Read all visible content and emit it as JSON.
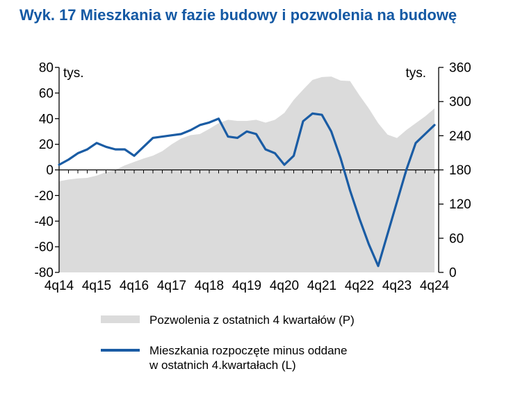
{
  "title": "Wyk. 17 Mieszkania w fazie budowy i pozwolenia na budowę",
  "colors": {
    "title_blue": "#1459A4",
    "line_blue": "#1A5CA4",
    "area_gray": "#DBDBDB",
    "axis_black": "#000000"
  },
  "legend": {
    "permits_label": "Pozwolenia z ostatnich 4 kwartałów (P)",
    "started_line1": "Mieszkania rozpoczęte minus oddane",
    "started_line2": "w ostatnich 4.kwartałach (L)"
  },
  "chart_data": {
    "type": "area+line (dual axis)",
    "unit_left": "tys.",
    "unit_right": "tys.",
    "left_axis": {
      "min": -80,
      "max": 80,
      "ticks": [
        80,
        60,
        40,
        20,
        0,
        -20,
        -40,
        -60,
        -80
      ]
    },
    "right_axis": {
      "min": 0,
      "max": 360,
      "ticks": [
        360,
        300,
        240,
        180,
        120,
        60,
        0
      ]
    },
    "x_tick_labels": [
      "4q14",
      "4q15",
      "4q16",
      "4q17",
      "4q18",
      "4q19",
      "4q20",
      "4q21",
      "4q22",
      "4q23",
      "4q24"
    ],
    "quarters": [
      "4q14",
      "1q15",
      "2q15",
      "3q15",
      "4q15",
      "1q16",
      "2q16",
      "3q16",
      "4q16",
      "1q17",
      "2q17",
      "3q17",
      "4q17",
      "1q18",
      "2q18",
      "3q18",
      "4q18",
      "1q19",
      "2q19",
      "3q19",
      "4q19",
      "1q20",
      "2q20",
      "3q20",
      "4q20",
      "1q21",
      "2q21",
      "3q21",
      "4q21",
      "1q22",
      "2q22",
      "3q22",
      "4q22",
      "1q23",
      "2q23",
      "3q23",
      "4q23",
      "1q24",
      "2q24",
      "3q24",
      "4q24"
    ],
    "series": [
      {
        "name": "Pozwolenia z ostatnich 4 kwartałów (P)",
        "type": "area",
        "axis": "right",
        "color": "#DBDBDB",
        "values": [
          160,
          163,
          165,
          166,
          170,
          176,
          180,
          188,
          194,
          200,
          205,
          213,
          225,
          235,
          241,
          243,
          252,
          262,
          268,
          266,
          266,
          268,
          263,
          268,
          280,
          303,
          321,
          338,
          343,
          344,
          337,
          336,
          311,
          288,
          262,
          242,
          236,
          250,
          262,
          274,
          288
        ]
      },
      {
        "name": "Mieszkania rozpoczęte minus oddane w ostatnich 4.kwartałach (L)",
        "type": "line",
        "axis": "left",
        "color": "#1A5CA4",
        "values": [
          4,
          8,
          13,
          16,
          21,
          18,
          16,
          16,
          11,
          18,
          25,
          26,
          27,
          28,
          31,
          35,
          37,
          40,
          26,
          25,
          30,
          28,
          16,
          13,
          4,
          11,
          38,
          44,
          43,
          30,
          9,
          -16,
          -38,
          -58,
          -75,
          -50,
          -25,
          0,
          21,
          28,
          35
        ]
      }
    ]
  }
}
